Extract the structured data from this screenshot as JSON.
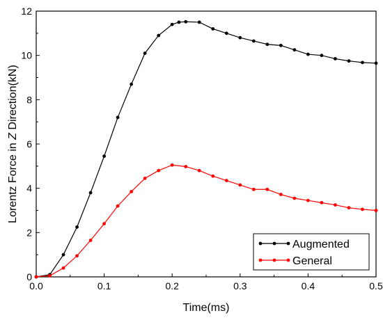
{
  "chart_data": {
    "type": "line",
    "xlabel": "Time(ms)",
    "ylabel_parts": [
      "Lorentz Force in ",
      "Z",
      " Direction(kN)"
    ],
    "xlim": [
      0,
      0.5
    ],
    "ylim": [
      0,
      12
    ],
    "x_ticks": [
      0,
      0.1,
      0.2,
      0.3,
      0.4,
      0.5
    ],
    "x_tick_labels": [
      "0.0",
      "0.1",
      "0.2",
      "0.3",
      "0.4",
      "0.5"
    ],
    "y_ticks": [
      0,
      2,
      4,
      6,
      8,
      10,
      12
    ],
    "y_tick_labels": [
      "0",
      "2",
      "4",
      "6",
      "8",
      "10",
      "12"
    ],
    "grid": false,
    "legend_position": "bottom-right",
    "series": [
      {
        "name": "Augmented",
        "color": "#000000",
        "x": [
          0,
          0.02,
          0.04,
          0.06,
          0.08,
          0.1,
          0.12,
          0.14,
          0.16,
          0.18,
          0.2,
          0.21,
          0.22,
          0.24,
          0.26,
          0.28,
          0.3,
          0.32,
          0.34,
          0.36,
          0.38,
          0.4,
          0.42,
          0.44,
          0.46,
          0.48,
          0.5
        ],
        "y": [
          0,
          0.1,
          1.0,
          2.25,
          3.8,
          5.45,
          7.2,
          8.7,
          10.1,
          10.9,
          11.4,
          11.5,
          11.52,
          11.5,
          11.2,
          11.0,
          10.8,
          10.65,
          10.5,
          10.45,
          10.25,
          10.05,
          10.0,
          9.85,
          9.75,
          9.68,
          9.65
        ]
      },
      {
        "name": "General",
        "color": "#ff0000",
        "x": [
          0,
          0.02,
          0.04,
          0.06,
          0.08,
          0.1,
          0.12,
          0.14,
          0.16,
          0.18,
          0.2,
          0.22,
          0.24,
          0.26,
          0.28,
          0.3,
          0.32,
          0.34,
          0.36,
          0.38,
          0.4,
          0.42,
          0.44,
          0.46,
          0.48,
          0.5
        ],
        "y": [
          0,
          0.05,
          0.4,
          0.95,
          1.65,
          2.4,
          3.2,
          3.85,
          4.45,
          4.8,
          5.05,
          4.98,
          4.8,
          4.55,
          4.35,
          4.15,
          3.95,
          3.95,
          3.72,
          3.55,
          3.45,
          3.35,
          3.25,
          3.12,
          3.05,
          3.0
        ]
      }
    ]
  }
}
